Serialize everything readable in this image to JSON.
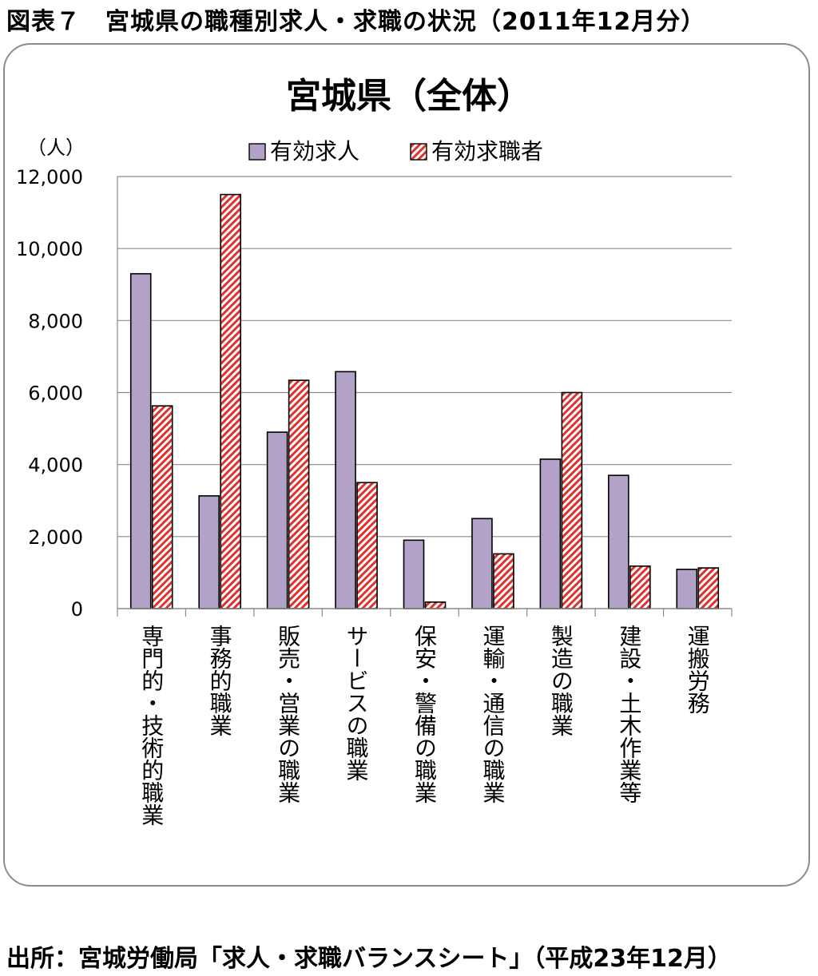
{
  "figure_title": "図表７　宮城県の職種別求人・求職の状況（2011年12月分）",
  "source": "出所：宮城労働局「求人・求職バランスシート」（平成23年12月）",
  "chart_data": {
    "type": "bar",
    "title": "宮城県（全体）",
    "ylabel": "（人）",
    "xlabel": "",
    "ylim": [
      0,
      12000
    ],
    "yticks": [
      0,
      2000,
      4000,
      6000,
      8000,
      10000,
      12000
    ],
    "ytick_labels": [
      "0",
      "2,000",
      "4,000",
      "6,000",
      "8,000",
      "10,000",
      "12,000"
    ],
    "grid": true,
    "legend_position": "top",
    "categories": [
      "専門的・技術的職業",
      "事務的職業",
      "販売・営業の職業",
      "サービスの職業",
      "保安・警備の職業",
      "運輸・通信の職業",
      "製造の職業",
      "建設・土木作業等",
      "運搬労務"
    ],
    "series": [
      {
        "name": "有効求人",
        "color": "#b3a2c7",
        "pattern": "solid",
        "values": [
          9300,
          3130,
          4900,
          6580,
          1900,
          2500,
          4150,
          3700,
          1090
        ]
      },
      {
        "name": "有効求職者",
        "color": "#ff9999",
        "pattern": "hatch",
        "values": [
          5630,
          11500,
          6340,
          3500,
          180,
          1520,
          6000,
          1180,
          1130
        ]
      }
    ]
  }
}
